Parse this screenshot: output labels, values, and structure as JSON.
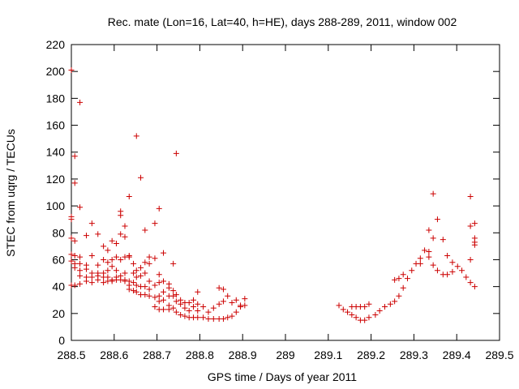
{
  "chart_data": {
    "type": "scatter",
    "title": "Rec. mate (Lon=16, Lat=40, h=HE), days 288-289, 2011, window 002",
    "xlabel": "GPS time / Days of year 2011",
    "ylabel": "STEC from uqrg / TECUs",
    "xlim": [
      288.5,
      289.5
    ],
    "ylim": [
      0,
      220
    ],
    "xticks": [
      288.5,
      288.6,
      288.7,
      288.8,
      288.9,
      289.0,
      289.1,
      289.2,
      289.3,
      289.4,
      289.5
    ],
    "xtick_labels": [
      "288.5",
      "288.6",
      "288.7",
      "288.8",
      "288.9",
      "289",
      "289.1",
      "289.2",
      "289.3",
      "289.4",
      "289.5"
    ],
    "yticks": [
      0,
      20,
      40,
      60,
      80,
      100,
      120,
      140,
      160,
      180,
      200,
      220
    ],
    "ytick_labels": [
      "0",
      "20",
      "40",
      "60",
      "80",
      "100",
      "120",
      "140",
      "160",
      "180",
      "200",
      "220"
    ],
    "grid": false,
    "legend": "none",
    "marker": "plus",
    "color": "#cc0000",
    "series": [
      {
        "name": "STEC",
        "points": [
          [
            288.5,
            201
          ],
          [
            288.5,
            92
          ],
          [
            288.5,
            90
          ],
          [
            288.5,
            76
          ],
          [
            288.5,
            64
          ],
          [
            288.5,
            59
          ],
          [
            288.5,
            41
          ],
          [
            288.508,
            137
          ],
          [
            288.508,
            117
          ],
          [
            288.508,
            74
          ],
          [
            288.508,
            63
          ],
          [
            288.508,
            57
          ],
          [
            288.508,
            54
          ],
          [
            288.508,
            41
          ],
          [
            288.52,
            177
          ],
          [
            288.52,
            99
          ],
          [
            288.52,
            62
          ],
          [
            288.52,
            57
          ],
          [
            288.52,
            52
          ],
          [
            288.52,
            48
          ],
          [
            288.52,
            42
          ],
          [
            288.535,
            78
          ],
          [
            288.535,
            56
          ],
          [
            288.535,
            53
          ],
          [
            288.535,
            47
          ],
          [
            288.535,
            44
          ],
          [
            288.548,
            87
          ],
          [
            288.548,
            63
          ],
          [
            288.548,
            50
          ],
          [
            288.548,
            47
          ],
          [
            288.548,
            43
          ],
          [
            288.562,
            79
          ],
          [
            288.562,
            56
          ],
          [
            288.562,
            50
          ],
          [
            288.562,
            48
          ],
          [
            288.562,
            45
          ],
          [
            288.575,
            70
          ],
          [
            288.575,
            60
          ],
          [
            288.575,
            50
          ],
          [
            288.575,
            47
          ],
          [
            288.575,
            43
          ],
          [
            288.585,
            67
          ],
          [
            288.585,
            58
          ],
          [
            288.585,
            52
          ],
          [
            288.585,
            47
          ],
          [
            288.585,
            44
          ],
          [
            288.595,
            74
          ],
          [
            288.595,
            60
          ],
          [
            288.595,
            55
          ],
          [
            288.595,
            45
          ],
          [
            288.595,
            44
          ],
          [
            288.605,
            72
          ],
          [
            288.605,
            62
          ],
          [
            288.605,
            52
          ],
          [
            288.605,
            47
          ],
          [
            288.605,
            45
          ],
          [
            288.615,
            96
          ],
          [
            288.615,
            93
          ],
          [
            288.615,
            79
          ],
          [
            288.615,
            60
          ],
          [
            288.615,
            48
          ],
          [
            288.615,
            45
          ],
          [
            288.625,
            85
          ],
          [
            288.625,
            77
          ],
          [
            288.625,
            62
          ],
          [
            288.625,
            50
          ],
          [
            288.625,
            45
          ],
          [
            288.625,
            44
          ],
          [
            288.635,
            107
          ],
          [
            288.635,
            63
          ],
          [
            288.635,
            62
          ],
          [
            288.635,
            44
          ],
          [
            288.635,
            41
          ],
          [
            288.635,
            38
          ],
          [
            288.645,
            57
          ],
          [
            288.645,
            50
          ],
          [
            288.645,
            43
          ],
          [
            288.645,
            37
          ],
          [
            288.652,
            152
          ],
          [
            288.652,
            52
          ],
          [
            288.652,
            47
          ],
          [
            288.652,
            41
          ],
          [
            288.652,
            36
          ],
          [
            288.662,
            121
          ],
          [
            288.662,
            54
          ],
          [
            288.662,
            48
          ],
          [
            288.662,
            40
          ],
          [
            288.662,
            34
          ],
          [
            288.672,
            82
          ],
          [
            288.672,
            58
          ],
          [
            288.672,
            50
          ],
          [
            288.672,
            40
          ],
          [
            288.672,
            34
          ],
          [
            288.682,
            62
          ],
          [
            288.682,
            57
          ],
          [
            288.682,
            44
          ],
          [
            288.682,
            38
          ],
          [
            288.682,
            33
          ],
          [
            288.695,
            87
          ],
          [
            288.695,
            61
          ],
          [
            288.695,
            41
          ],
          [
            288.695,
            32
          ],
          [
            288.695,
            25
          ],
          [
            288.705,
            98
          ],
          [
            288.705,
            49
          ],
          [
            288.705,
            43
          ],
          [
            288.705,
            33
          ],
          [
            288.705,
            29
          ],
          [
            288.705,
            23
          ],
          [
            288.715,
            65
          ],
          [
            288.715,
            44
          ],
          [
            288.715,
            36
          ],
          [
            288.715,
            30
          ],
          [
            288.715,
            23
          ],
          [
            288.728,
            42
          ],
          [
            288.728,
            39
          ],
          [
            288.728,
            33
          ],
          [
            288.728,
            26
          ],
          [
            288.728,
            23
          ],
          [
            288.738,
            57
          ],
          [
            288.738,
            37
          ],
          [
            288.738,
            33
          ],
          [
            288.738,
            24
          ],
          [
            288.745,
            139
          ],
          [
            288.745,
            34
          ],
          [
            288.745,
            29
          ],
          [
            288.745,
            21
          ],
          [
            288.755,
            30
          ],
          [
            288.755,
            27
          ],
          [
            288.755,
            19
          ],
          [
            288.765,
            28
          ],
          [
            288.765,
            24
          ],
          [
            288.765,
            18
          ],
          [
            288.775,
            28
          ],
          [
            288.775,
            22
          ],
          [
            288.775,
            17
          ],
          [
            288.785,
            30
          ],
          [
            288.785,
            25
          ],
          [
            288.785,
            17
          ],
          [
            288.795,
            36
          ],
          [
            288.795,
            27
          ],
          [
            288.795,
            22
          ],
          [
            288.795,
            17
          ],
          [
            288.808,
            25
          ],
          [
            288.808,
            17
          ],
          [
            288.82,
            21
          ],
          [
            288.82,
            16
          ],
          [
            288.832,
            24
          ],
          [
            288.832,
            16
          ],
          [
            288.845,
            39
          ],
          [
            288.845,
            27
          ],
          [
            288.845,
            16
          ],
          [
            288.855,
            38
          ],
          [
            288.855,
            29
          ],
          [
            288.855,
            16
          ],
          [
            288.865,
            33
          ],
          [
            288.865,
            17
          ],
          [
            288.875,
            28
          ],
          [
            288.875,
            18
          ],
          [
            288.885,
            30
          ],
          [
            288.885,
            21
          ],
          [
            288.895,
            26
          ],
          [
            288.895,
            25
          ],
          [
            288.905,
            31
          ],
          [
            288.905,
            26
          ],
          [
            289.125,
            26
          ],
          [
            289.135,
            23
          ],
          [
            289.145,
            21
          ],
          [
            289.155,
            25
          ],
          [
            289.155,
            19
          ],
          [
            289.165,
            25
          ],
          [
            289.165,
            17
          ],
          [
            289.175,
            25
          ],
          [
            289.175,
            15
          ],
          [
            289.185,
            25
          ],
          [
            289.185,
            15
          ],
          [
            289.195,
            27
          ],
          [
            289.195,
            17
          ],
          [
            289.21,
            19
          ],
          [
            289.22,
            22
          ],
          [
            289.232,
            25
          ],
          [
            289.245,
            27
          ],
          [
            289.255,
            45
          ],
          [
            289.255,
            29
          ],
          [
            289.265,
            46
          ],
          [
            289.265,
            33
          ],
          [
            289.275,
            49
          ],
          [
            289.275,
            39
          ],
          [
            289.285,
            46
          ],
          [
            289.295,
            52
          ],
          [
            289.305,
            57
          ],
          [
            289.315,
            61
          ],
          [
            289.315,
            57
          ],
          [
            289.325,
            67
          ],
          [
            289.335,
            82
          ],
          [
            289.335,
            66
          ],
          [
            289.335,
            62
          ],
          [
            289.345,
            109
          ],
          [
            289.345,
            76
          ],
          [
            289.345,
            56
          ],
          [
            289.355,
            90
          ],
          [
            289.355,
            52
          ],
          [
            289.368,
            75
          ],
          [
            289.368,
            49
          ],
          [
            289.378,
            63
          ],
          [
            289.378,
            49
          ],
          [
            289.39,
            58
          ],
          [
            289.39,
            51
          ],
          [
            289.402,
            55
          ],
          [
            289.412,
            52
          ],
          [
            289.422,
            47
          ],
          [
            289.432,
            107
          ],
          [
            289.432,
            85
          ],
          [
            289.432,
            60
          ],
          [
            289.432,
            43
          ],
          [
            289.442,
            87
          ],
          [
            289.442,
            76
          ],
          [
            289.442,
            73
          ],
          [
            289.442,
            71
          ],
          [
            289.442,
            40
          ]
        ]
      }
    ]
  }
}
